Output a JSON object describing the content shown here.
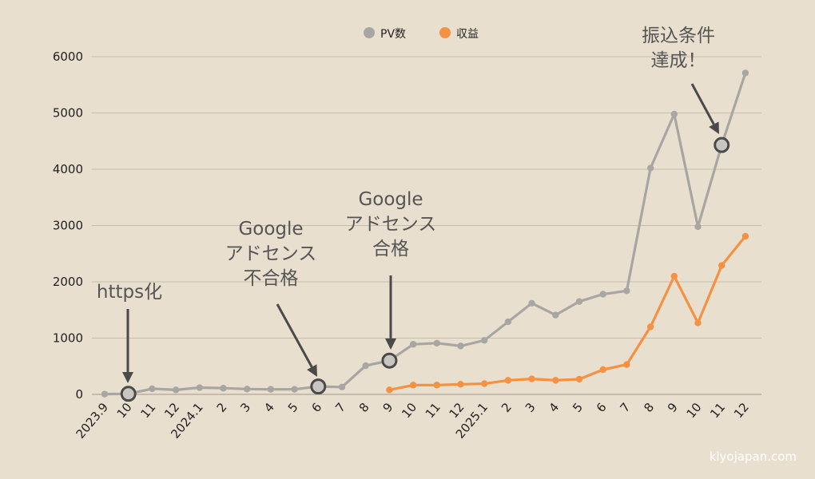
{
  "chart_data": {
    "type": "line",
    "x_labels": [
      "2023.9",
      "10",
      "11",
      "12",
      "2024.1",
      "2",
      "3",
      "4",
      "5",
      "6",
      "7",
      "8",
      "9",
      "10",
      "11",
      "12",
      "2025.1",
      "2",
      "3",
      "4",
      "5",
      "6",
      "7",
      "8",
      "9",
      "10",
      "11",
      "12"
    ],
    "ylim": [
      0,
      6000
    ],
    "yticks": [
      0,
      1000,
      2000,
      3000,
      4000,
      5000,
      6000
    ],
    "grid": true,
    "legend_position": "top-center",
    "series": [
      {
        "name": "PV数",
        "color": "#a8a6a3",
        "start_index": 0,
        "values": [
          5,
          10,
          100,
          80,
          120,
          110,
          95,
          90,
          90,
          140,
          130,
          510,
          600,
          890,
          910,
          860,
          960,
          1290,
          1620,
          1410,
          1650,
          1780,
          1840,
          4020,
          4980,
          2980,
          4430,
          5710
        ]
      },
      {
        "name": "収益",
        "color": "#f59143",
        "start_index": 12,
        "values": [
          80,
          165,
          165,
          180,
          190,
          250,
          275,
          250,
          270,
          440,
          530,
          1200,
          2100,
          1270,
          2290,
          2810
        ]
      }
    ],
    "annotations": [
      {
        "lines": [
          "https化"
        ],
        "index": 1
      },
      {
        "lines": [
          "Google",
          "アドセンス",
          "不合格"
        ],
        "index": 9
      },
      {
        "lines": [
          "Google",
          "アドセンス",
          "合格"
        ],
        "index": 12
      },
      {
        "lines": [
          "振込条件",
          "達成！"
        ],
        "index": 26
      }
    ]
  },
  "watermark": "kiyojapan.com"
}
